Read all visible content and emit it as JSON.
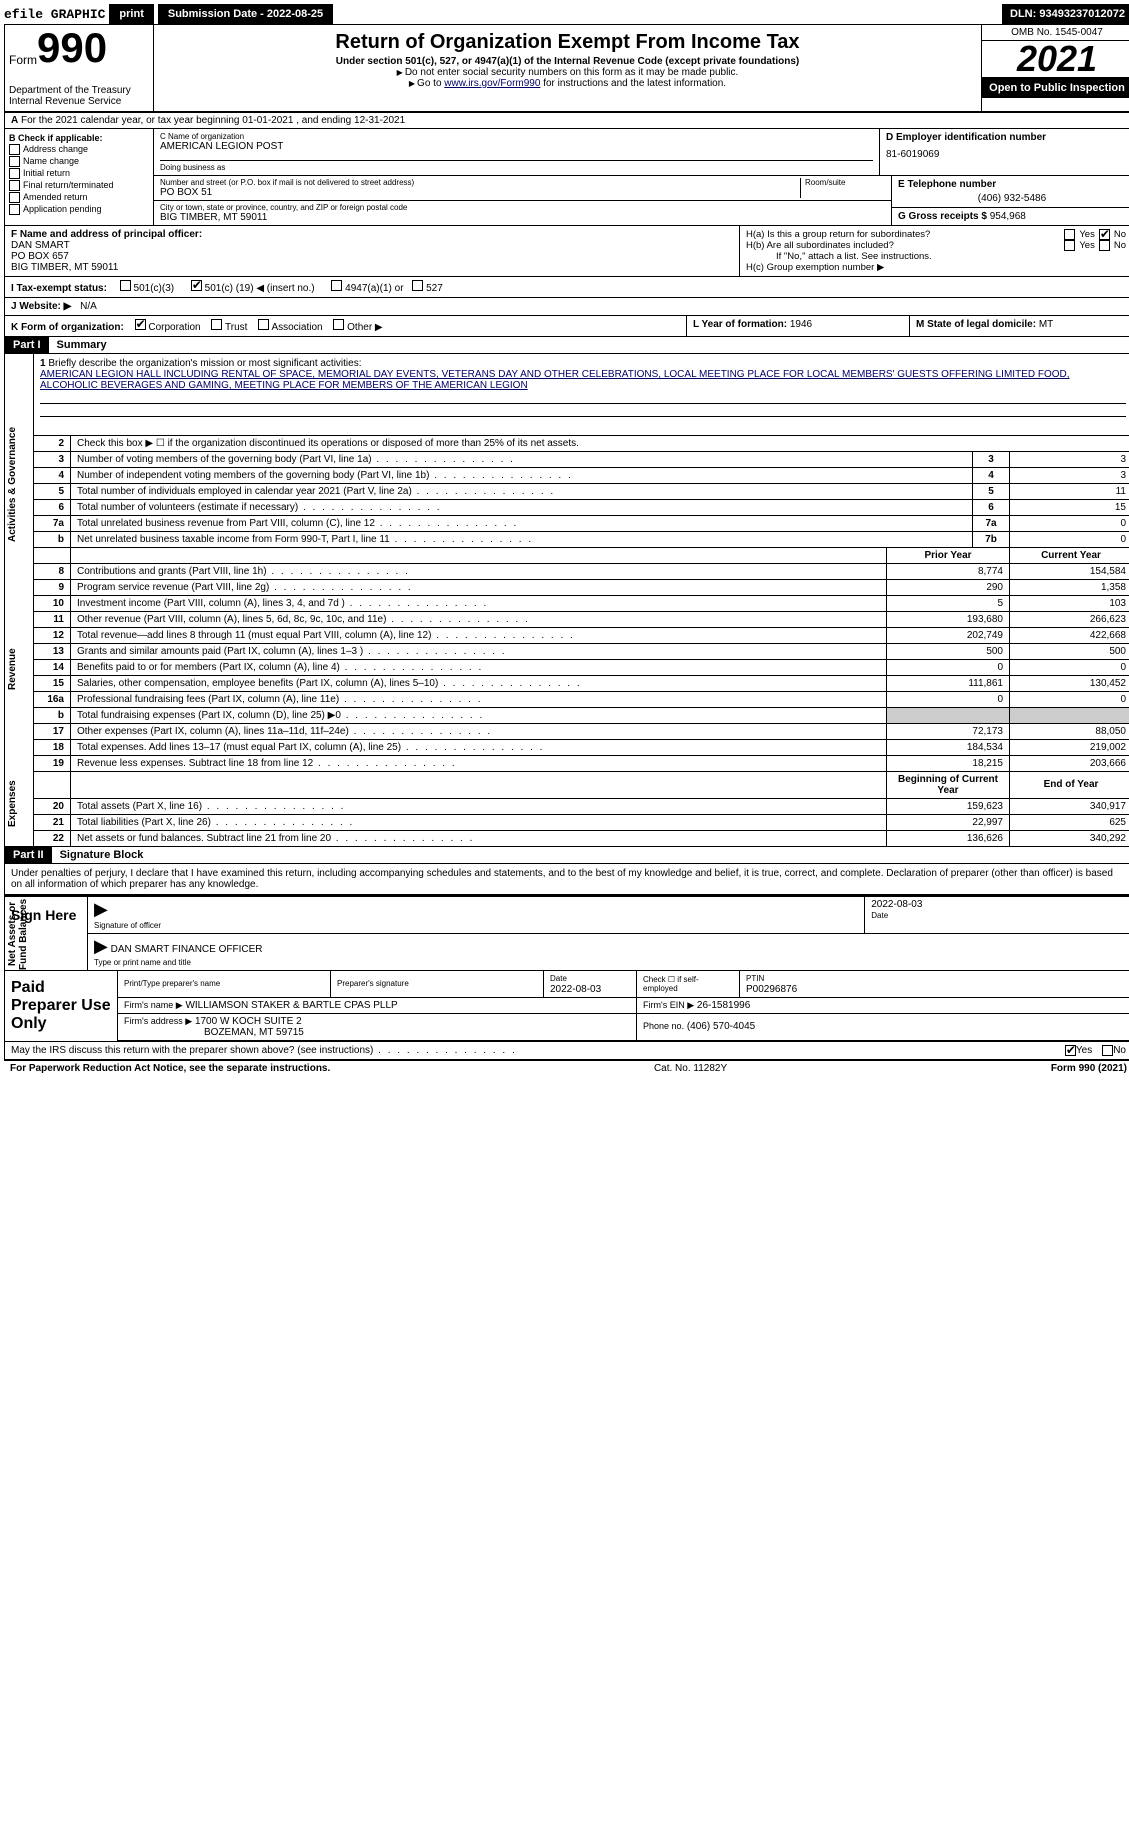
{
  "topbar": {
    "efile": "efile GRAPHIC",
    "print": "print",
    "submission": "Submission Date - 2022-08-25",
    "dln": "DLN: 93493237012072"
  },
  "header": {
    "form_word": "Form",
    "form_num": "990",
    "title": "Return of Organization Exempt From Income Tax",
    "subtitle": "Under section 501(c), 527, or 4947(a)(1) of the Internal Revenue Code (except private foundations)",
    "note1": "Do not enter social security numbers on this form as it may be made public.",
    "note2_pre": "Go to ",
    "note2_link": "www.irs.gov/Form990",
    "note2_post": " for instructions and the latest information.",
    "dept": "Department of the Treasury",
    "irs": "Internal Revenue Service",
    "omb": "OMB No. 1545-0047",
    "year": "2021",
    "open": "Open to Public Inspection"
  },
  "rowA": "For the 2021 calendar year, or tax year beginning 01-01-2021     , and ending 12-31-2021",
  "colB": {
    "hdr": "B Check if applicable:",
    "items": [
      "Address change",
      "Name change",
      "Initial return",
      "Final return/terminated",
      "Amended return",
      "Application pending"
    ]
  },
  "colC": {
    "name_lbl": "C Name of organization",
    "name": "AMERICAN LEGION POST",
    "dba_lbl": "Doing business as",
    "dba": "",
    "addr_lbl": "Number and street (or P.O. box if mail is not delivered to street address)",
    "room_lbl": "Room/suite",
    "addr": "PO BOX 51",
    "city_lbl": "City or town, state or province, country, and ZIP or foreign postal code",
    "city": "BIG TIMBER, MT  59011"
  },
  "colD": {
    "lbl": "D Employer identification number",
    "val": "81-6019069"
  },
  "colE": {
    "lbl": "E Telephone number",
    "val": "(406) 932-5486"
  },
  "colG": {
    "lbl": "G Gross receipts $",
    "val": "954,968"
  },
  "sectionF": {
    "lbl": "F Name and address of principal officer:",
    "name": "DAN SMART",
    "addr1": "PO BOX 657",
    "addr2": "BIG TIMBER, MT  59011",
    "ha": "H(a)  Is this a group return for subordinates?",
    "hb": "H(b)  Are all subordinates included?",
    "hb_note": "If \"No,\" attach a list. See instructions.",
    "hc": "H(c)  Group exemption number ▶",
    "yes": "Yes",
    "no": "No"
  },
  "rowI": {
    "lbl": "I   Tax-exempt status:",
    "o1": "501(c)(3)",
    "o2a": "501(c) (",
    "o2b": "19",
    "o2c": ") ◀ (insert no.)",
    "o3": "4947(a)(1) or",
    "o4": "527"
  },
  "rowJ": {
    "lbl": "J   Website: ▶",
    "val": "N/A"
  },
  "rowK": {
    "lbl": "K Form of organization:",
    "o1": "Corporation",
    "o2": "Trust",
    "o3": "Association",
    "o4": "Other ▶"
  },
  "rowL": {
    "lbl": "L Year of formation:",
    "val": "1946"
  },
  "rowM": {
    "lbl": "M State of legal domicile:",
    "val": "MT"
  },
  "part1": {
    "num": "Part I",
    "title": "Summary"
  },
  "q1": {
    "num": "1",
    "text": "Briefly describe the organization's mission or most significant activities:",
    "mission": "AMERICAN LEGION HALL INCLUDING RENTAL OF SPACE, MEMORIAL DAY EVENTS, VETERANS DAY AND OTHER CELEBRATIONS, LOCAL MEETING PLACE FOR LOCAL MEMBERS' GUESTS OFFERING LIMITED FOOD, ALCOHOLIC BEVERAGES AND GAMING, MEETING PLACE FOR MEMBERS OF THE AMERICAN LEGION"
  },
  "gov_rows": [
    {
      "n": "2",
      "t": "Check this box ▶ ☐  if the organization discontinued its operations or disposed of more than 25% of its net assets.",
      "box": "",
      "v": ""
    },
    {
      "n": "3",
      "t": "Number of voting members of the governing body (Part VI, line 1a)",
      "box": "3",
      "v": "3"
    },
    {
      "n": "4",
      "t": "Number of independent voting members of the governing body (Part VI, line 1b)",
      "box": "4",
      "v": "3"
    },
    {
      "n": "5",
      "t": "Total number of individuals employed in calendar year 2021 (Part V, line 2a)",
      "box": "5",
      "v": "11"
    },
    {
      "n": "6",
      "t": "Total number of volunteers (estimate if necessary)",
      "box": "6",
      "v": "15"
    },
    {
      "n": "7a",
      "t": "Total unrelated business revenue from Part VIII, column (C), line 12",
      "box": "7a",
      "v": "0"
    },
    {
      "n": "b",
      "t": "Net unrelated business taxable income from Form 990-T, Part I, line 11",
      "box": "7b",
      "v": "0"
    }
  ],
  "pc_hdr": {
    "prior": "Prior Year",
    "curr": "Current Year"
  },
  "rev_rows": [
    {
      "n": "8",
      "t": "Contributions and grants (Part VIII, line 1h)",
      "p": "8,774",
      "c": "154,584"
    },
    {
      "n": "9",
      "t": "Program service revenue (Part VIII, line 2g)",
      "p": "290",
      "c": "1,358"
    },
    {
      "n": "10",
      "t": "Investment income (Part VIII, column (A), lines 3, 4, and 7d )",
      "p": "5",
      "c": "103"
    },
    {
      "n": "11",
      "t": "Other revenue (Part VIII, column (A), lines 5, 6d, 8c, 9c, 10c, and 11e)",
      "p": "193,680",
      "c": "266,623"
    },
    {
      "n": "12",
      "t": "Total revenue—add lines 8 through 11 (must equal Part VIII, column (A), line 12)",
      "p": "202,749",
      "c": "422,668"
    }
  ],
  "exp_rows": [
    {
      "n": "13",
      "t": "Grants and similar amounts paid (Part IX, column (A), lines 1–3 )",
      "p": "500",
      "c": "500"
    },
    {
      "n": "14",
      "t": "Benefits paid to or for members (Part IX, column (A), line 4)",
      "p": "0",
      "c": "0"
    },
    {
      "n": "15",
      "t": "Salaries, other compensation, employee benefits (Part IX, column (A), lines 5–10)",
      "p": "111,861",
      "c": "130,452"
    },
    {
      "n": "16a",
      "t": "Professional fundraising fees (Part IX, column (A), line 11e)",
      "p": "0",
      "c": "0"
    },
    {
      "n": "b",
      "t": "Total fundraising expenses (Part IX, column (D), line 25) ▶0",
      "p": "",
      "c": "",
      "shade": true
    },
    {
      "n": "17",
      "t": "Other expenses (Part IX, column (A), lines 11a–11d, 11f–24e)",
      "p": "72,173",
      "c": "88,050"
    },
    {
      "n": "18",
      "t": "Total expenses. Add lines 13–17 (must equal Part IX, column (A), line 25)",
      "p": "184,534",
      "c": "219,002"
    },
    {
      "n": "19",
      "t": "Revenue less expenses. Subtract line 18 from line 12",
      "p": "18,215",
      "c": "203,666"
    }
  ],
  "net_hdr": {
    "prior": "Beginning of Current Year",
    "curr": "End of Year"
  },
  "net_rows": [
    {
      "n": "20",
      "t": "Total assets (Part X, line 16)",
      "p": "159,623",
      "c": "340,917"
    },
    {
      "n": "21",
      "t": "Total liabilities (Part X, line 26)",
      "p": "22,997",
      "c": "625"
    },
    {
      "n": "22",
      "t": "Net assets or fund balances. Subtract line 21 from line 20",
      "p": "136,626",
      "c": "340,292"
    }
  ],
  "part2": {
    "num": "Part II",
    "title": "Signature Block"
  },
  "penalties": "Under penalties of perjury, I declare that I have examined this return, including accompanying schedules and statements, and to the best of my knowledge and belief, it is true, correct, and complete. Declaration of preparer (other than officer) is based on all information of which preparer has any knowledge.",
  "sign": {
    "lbl": "Sign Here",
    "sig_lbl": "Signature of officer",
    "date_lbl": "Date",
    "date": "2022-08-03",
    "name": "DAN SMART FINANCE OFFICER",
    "name_lbl": "Type or print name and title"
  },
  "paid": {
    "lbl": "Paid Preparer Use Only",
    "h1": "Print/Type preparer's name",
    "h2": "Preparer's signature",
    "h3": "Date",
    "h3v": "2022-08-03",
    "h4": "Check ☐ if self-employed",
    "h5": "PTIN",
    "h5v": "P00296876",
    "firm_lbl": "Firm's name     ▶",
    "firm": "WILLIAMSON STAKER & BARTLE CPAS PLLP",
    "ein_lbl": "Firm's EIN ▶",
    "ein": "26-1581996",
    "addr_lbl": "Firm's address ▶",
    "addr1": "1700 W KOCH SUITE 2",
    "addr2": "BOZEMAN, MT  59715",
    "phone_lbl": "Phone no.",
    "phone": "(406) 570-4045"
  },
  "footer": {
    "discuss": "May the IRS discuss this return with the preparer shown above? (see instructions)",
    "yes": "Yes",
    "no": "No",
    "paperwork": "For Paperwork Reduction Act Notice, see the separate instructions.",
    "cat": "Cat. No. 11282Y",
    "form": "Form 990 (2021)"
  }
}
